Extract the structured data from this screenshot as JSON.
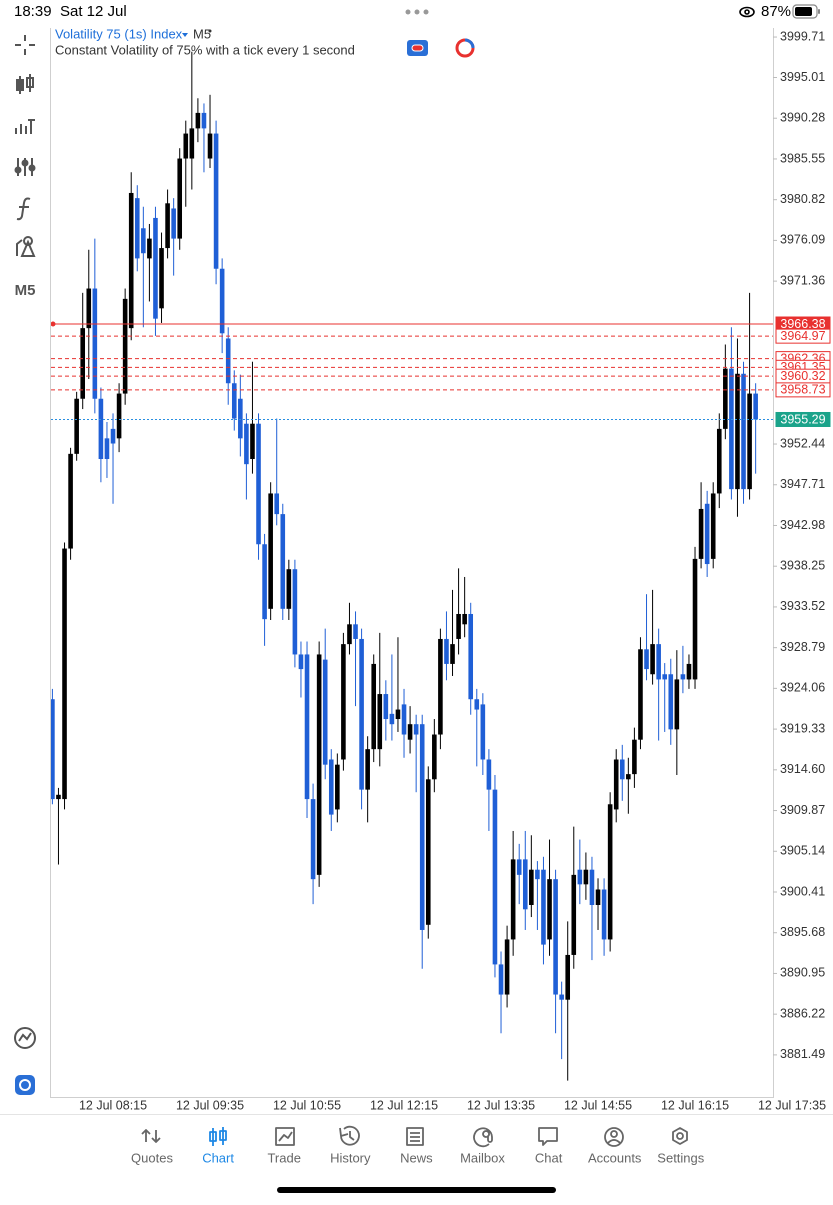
{
  "status_bar": {
    "time": "18:39",
    "date": "Sat 12 Jul",
    "battery": "87%"
  },
  "toolbar": {
    "timeframe": "M5"
  },
  "chart_data": {
    "type": "candlestick",
    "title": "Volatility 75 (1s) Index",
    "timeframe": "M5",
    "subtitle": "Constant Volatility of 75% with a tick every 1 second",
    "up_color": "#000000",
    "down_color": "#1f5fd6",
    "ylim": [
      3876.6,
      4000.76
    ],
    "yticks": [
      3999.71,
      3995.01,
      3990.28,
      3985.55,
      3980.82,
      3976.09,
      3971.36,
      3952.44,
      3947.71,
      3942.98,
      3938.25,
      3933.52,
      3928.79,
      3924.06,
      3919.33,
      {
        "value": 3914.6,
        "label": "3914.60"
      },
      3909.87,
      3905.14,
      3900.41,
      3895.68,
      3890.95,
      3886.22,
      3881.49
    ],
    "categories": [
      null,
      null,
      null,
      null,
      null,
      null,
      null,
      null,
      null,
      null,
      "12 Jul 08:15",
      null,
      null,
      null,
      null,
      null,
      null,
      null,
      null,
      null,
      null,
      null,
      null,
      null,
      null,
      null,
      "12 Jul 09:35",
      null,
      null,
      null,
      null,
      null,
      null,
      null,
      null,
      null,
      null,
      null,
      null,
      null,
      null,
      null,
      "12 Jul 10:55",
      null,
      null,
      null,
      null,
      null,
      null,
      null,
      null,
      null,
      null,
      null,
      null,
      null,
      null,
      null,
      "12 Jul 12:15",
      null,
      null,
      null,
      null,
      null,
      null,
      null,
      null,
      null,
      null,
      null,
      null,
      null,
      null,
      null,
      "12 Jul 13:35",
      null,
      null,
      null,
      null,
      null,
      null,
      null,
      null,
      null,
      null,
      null,
      null,
      null,
      null,
      null,
      "12 Jul 14:55",
      null,
      null,
      null,
      null,
      null,
      null,
      null,
      null,
      null,
      null,
      null,
      null,
      null,
      null,
      null,
      "12 Jul 16:15",
      null,
      null,
      null,
      null,
      null,
      null,
      null,
      null,
      null,
      null,
      null,
      null,
      null,
      null,
      null,
      "12 Jul 17:35"
    ],
    "open": [
      3922.8,
      3911.2,
      3911.2,
      3940.3,
      3951.3,
      3957.7,
      3965.9,
      3970.5,
      3957.7,
      3953.1,
      3954.2,
      3953.1,
      3958.3,
      3965.9,
      3981.0,
      3977.5,
      3974.0,
      3978.7,
      3968.2,
      3975.2,
      3979.8,
      3976.3,
      3985.6,
      3985.6,
      3989.1,
      3990.9,
      3985.6,
      3988.5,
      3972.8,
      3964.7,
      3959.5,
      3957.7,
      3954.8,
      3950.7,
      3954.8,
      3940.8,
      3933.3,
      3946.7,
      3944.3,
      3933.3,
      3937.9,
      3928.0,
      3928.0,
      3911.2,
      3902.4,
      3927.4,
      3915.8,
      3910.0,
      3915.8,
      3929.2,
      3931.5,
      3929.8,
      3912.3,
      3917.0,
      3917.0,
      3923.4,
      3921.1,
      3920.5,
      3922.2,
      3918.1,
      3919.9,
      3919.9,
      3896.6,
      3913.5,
      3918.7,
      3929.8,
      3926.9,
      3929.8,
      3931.5,
      3932.7,
      3922.8,
      3922.2,
      3915.8,
      3912.3,
      3892.0,
      3888.5,
      3894.9,
      3904.2,
      3904.2,
      3898.9,
      3903.0,
      3903.0,
      3894.9,
      3901.9,
      3888.5,
      3887.9,
      3893.1,
      3903.0,
      3901.3,
      3903.0,
      3898.9,
      3900.7,
      3894.9,
      3910.0,
      3915.8,
      3913.5,
      3914.1,
      3918.1,
      3928.6,
      3925.7,
      3929.2,
      3925.7,
      3925.7,
      3919.3,
      3925.7,
      3925.1,
      3925.1,
      3939.1,
      3945.5,
      3939.1,
      3946.7,
      3954.2,
      3961.2,
      3947.2,
      3960.6,
      3947.2,
      3958.3,
      null,
      null,
      null,
      null,
      null,
      null
    ],
    "high": [
      3924.0,
      3912.5,
      3941.0,
      3952.0,
      3958.5,
      3970.0,
      3975.0,
      3976.3,
      3959.0,
      3955.0,
      3956.0,
      3959.5,
      3970.5,
      3984.0,
      3982.5,
      3980.0,
      3978.0,
      3980.0,
      3977.0,
      3982.0,
      3981.0,
      3986.8,
      3990.0,
      3998.0,
      3992.6,
      3992.0,
      3993.0,
      3990.0,
      3974.0,
      3966.0,
      3961.0,
      3960.5,
      3956.0,
      3962.0,
      3956.0,
      3942.0,
      3948.0,
      3955.4,
      3945.5,
      3939.0,
      3939.0,
      3929.5,
      3929.5,
      3913.0,
      3929.5,
      3931.0,
      3917.0,
      3916.5,
      3930.5,
      3934.0,
      3933.0,
      3931.0,
      3918.5,
      3928.0,
      3930.5,
      3925.0,
      3928.0,
      3930.0,
      3924.0,
      3922.0,
      3921.0,
      3921.0,
      3915.0,
      3920.5,
      3931.0,
      3933.0,
      3935.5,
      3938.0,
      3937.0,
      3934.0,
      3924.0,
      3923.5,
      3917.0,
      3914.0,
      3893.5,
      3896.5,
      3907.5,
      3906.0,
      3907.5,
      3907.0,
      3904.0,
      3904.5,
      3906.5,
      3903.0,
      3890.0,
      3897.0,
      3908.0,
      3906.5,
      3905.0,
      3904.5,
      3902.0,
      3902.0,
      3912.0,
      3917.0,
      3917.5,
      3916.0,
      3919.5,
      3930.0,
      3935.0,
      3935.5,
      3931.0,
      3927.0,
      3927.5,
      3928.5,
      3929.0,
      3928.0,
      3940.5,
      3948.0,
      3947.0,
      3948.0,
      3956.0,
      3964.0,
      3966.0,
      3964.7,
      3962.0,
      3970.0,
      3959.5,
      null,
      null,
      null,
      null,
      null,
      null
    ],
    "low": [
      3910.6,
      3903.6,
      3910.0,
      3939.0,
      3950.5,
      3956.5,
      3960.0,
      3956.0,
      3948.0,
      3948.5,
      3945.5,
      3951.5,
      3957.0,
      3964.5,
      3972.5,
      3966.0,
      3969.0,
      3965.0,
      3966.5,
      3974.0,
      3972.0,
      3975.0,
      3980.0,
      3982.0,
      3987.5,
      3984.0,
      3984.5,
      3971.0,
      3963.0,
      3957.0,
      3954.0,
      3951.0,
      3946.0,
      3949.0,
      3939.0,
      3929.0,
      3932.0,
      3943.0,
      3932.0,
      3932.0,
      3926.5,
      3923.0,
      3909.0,
      3899.0,
      3901.0,
      3913.5,
      3907.5,
      3908.5,
      3914.5,
      3928.0,
      3922.0,
      3910.0,
      3908.5,
      3915.5,
      3915.0,
      3918.0,
      3918.0,
      3919.0,
      3916.0,
      3916.5,
      3912.0,
      3891.5,
      3895.0,
      3912.0,
      3917.0,
      3925.0,
      3925.5,
      3928.0,
      3930.0,
      3921.0,
      3915.0,
      3914.0,
      3907.5,
      3890.5,
      3884.0,
      3887.0,
      3893.0,
      3899.0,
      3896.0,
      3897.5,
      3896.0,
      3892.0,
      3893.0,
      3884.0,
      3881.0,
      3878.5,
      3891.5,
      3899.0,
      3899.5,
      3892.5,
      3896.0,
      3893.0,
      3893.5,
      3908.5,
      3911.0,
      3909.5,
      3912.5,
      3917.0,
      3925.0,
      3924.5,
      3918.0,
      3919.0,
      3917.5,
      3914.0,
      3923.5,
      3924.0,
      3924.0,
      3938.0,
      3937.0,
      3938.0,
      3945.0,
      3953.0,
      3946.0,
      3944.0,
      3945.5,
      3946.0,
      3949.0,
      null,
      null,
      null,
      null,
      null,
      null
    ],
    "close": [
      3911.2,
      3911.7,
      3940.3,
      3951.3,
      3957.7,
      3965.9,
      3970.5,
      3957.7,
      3950.7,
      3950.7,
      3952.5,
      3958.3,
      3969.3,
      3981.6,
      3974.0,
      3974.6,
      3976.3,
      3967.0,
      3975.2,
      3980.4,
      3976.3,
      3985.6,
      3988.5,
      3989.1,
      3990.9,
      3989.1,
      3988.5,
      3972.8,
      3965.3,
      3959.5,
      3955.4,
      3953.1,
      3950.1,
      3954.8,
      3940.8,
      3932.1,
      3946.7,
      3944.3,
      3933.3,
      3937.9,
      3928.0,
      3926.3,
      3911.2,
      3901.9,
      3928.0,
      3915.2,
      3909.4,
      3915.2,
      3929.2,
      3931.5,
      3929.8,
      3912.3,
      3917.0,
      3926.9,
      3923.4,
      3920.5,
      3919.9,
      3921.6,
      3918.7,
      3919.9,
      3918.7,
      3896.0,
      3913.5,
      3918.7,
      3929.8,
      3926.9,
      3929.2,
      3932.7,
      3932.7,
      3922.8,
      3921.6,
      3915.8,
      3912.3,
      3892.0,
      3888.5,
      3894.9,
      3904.2,
      3902.4,
      3898.4,
      3903.0,
      3901.9,
      3894.3,
      3901.9,
      3888.5,
      3887.9,
      3893.1,
      3902.4,
      3901.3,
      3903.0,
      3898.9,
      3900.7,
      3894.9,
      3910.6,
      3915.8,
      3913.5,
      3914.1,
      3918.1,
      3928.6,
      3926.3,
      3929.2,
      3925.1,
      3925.1,
      3919.3,
      3925.1,
      3925.1,
      3926.9,
      3939.1,
      3944.9,
      3938.5,
      3946.7,
      3954.2,
      3961.2,
      3947.2,
      3960.6,
      3947.2,
      3958.3,
      3955.29,
      null,
      null,
      null,
      null,
      null,
      null
    ],
    "levels": [
      {
        "value": 3966.38,
        "color": "#e8312f",
        "line": "solid",
        "label_style": "filled"
      },
      {
        "value": 3964.97,
        "color": "#e8312f",
        "line": "dashed",
        "label_style": "outline"
      },
      {
        "value": 3962.36,
        "color": "#e8312f",
        "line": "dashed",
        "label_style": "outline"
      },
      {
        "value": 3961.35,
        "color": "#e8312f",
        "line": "dashed",
        "label_style": "outline"
      },
      {
        "value": 3960.32,
        "color": "#e8312f",
        "line": "dashed",
        "label_style": "outline"
      },
      {
        "value": 3958.73,
        "color": "#e8312f",
        "line": "dashed",
        "label_style": "outline"
      },
      {
        "value": 3955.29,
        "color": "#1aa38a",
        "line_color": "#2a8fe0",
        "line": "dotted",
        "label_style": "filled"
      }
    ]
  },
  "tabs": [
    {
      "label": "Quotes"
    },
    {
      "label": "Chart",
      "active": true
    },
    {
      "label": "Trade"
    },
    {
      "label": "History"
    },
    {
      "label": "News"
    },
    {
      "label": "Mailbox"
    },
    {
      "label": "Chat"
    },
    {
      "label": "Accounts"
    },
    {
      "label": "Settings"
    }
  ]
}
